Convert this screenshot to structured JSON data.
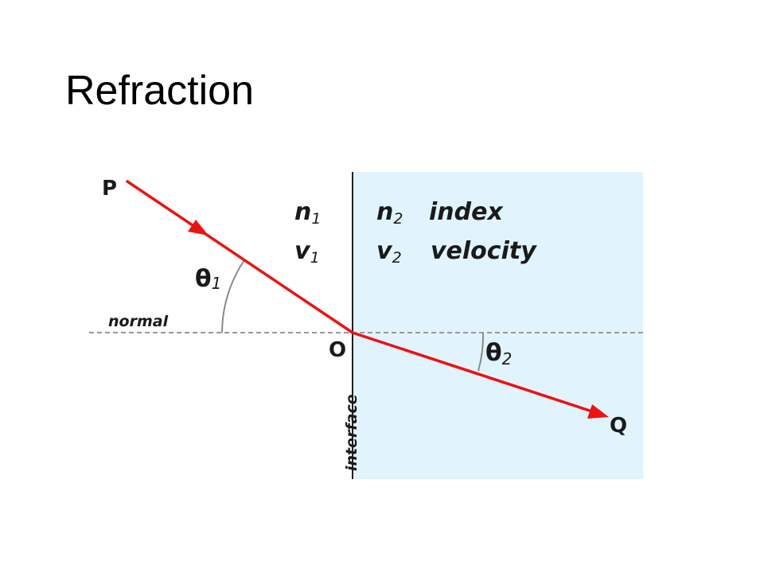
{
  "title": "Refraction",
  "diagram": {
    "point_p": "P",
    "point_o": "O",
    "point_q": "Q",
    "medium1_index_symbol": "n",
    "medium1_index_sub": "1",
    "medium1_velocity_symbol": "v",
    "medium1_velocity_sub": "1",
    "medium2_index_symbol": "n",
    "medium2_index_sub": "2",
    "medium2_velocity_symbol": "v",
    "medium2_velocity_sub": "2",
    "index_label": "index",
    "velocity_label": "velocity",
    "theta1_symbol": "θ",
    "theta1_sub": "1",
    "theta2_symbol": "θ",
    "theta2_sub": "2",
    "normal_label": "normal",
    "interface_label": "interface"
  },
  "colors": {
    "ray": "#ee1111",
    "medium2_fill": "#e1f3fc",
    "normal_line": "#999999",
    "angle_arc": "#8a8a8a",
    "interface_line": "#222222"
  }
}
